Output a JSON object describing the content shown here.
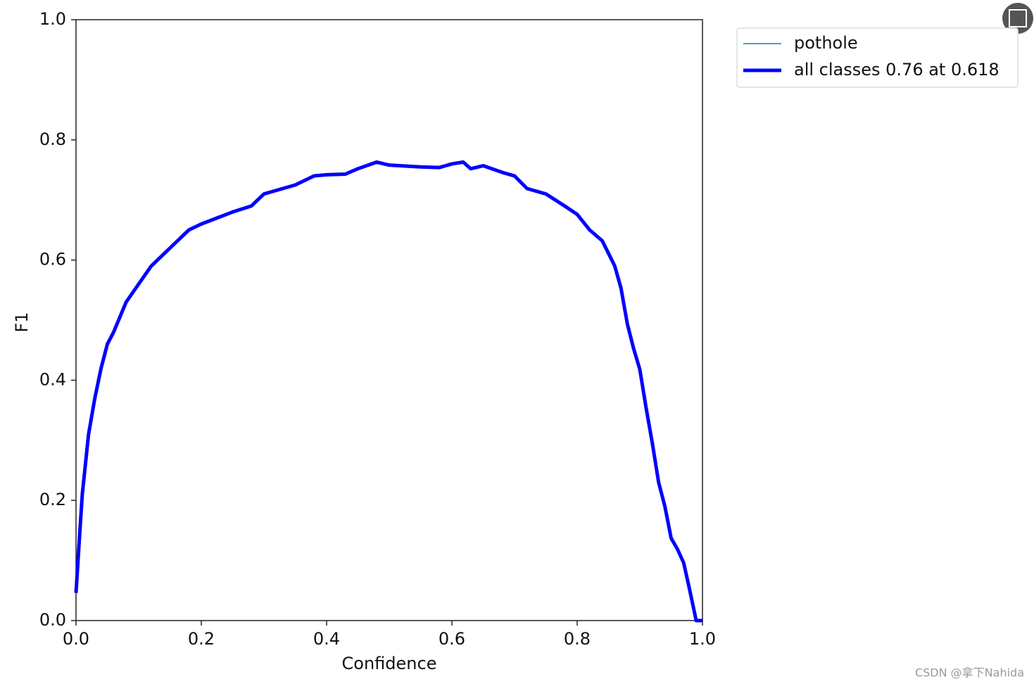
{
  "chart_data": {
    "type": "line",
    "xlabel": "Confidence",
    "ylabel": "F1",
    "x": [
      0.0,
      0.005,
      0.01,
      0.02,
      0.03,
      0.04,
      0.05,
      0.06,
      0.08,
      0.1,
      0.12,
      0.15,
      0.18,
      0.2,
      0.25,
      0.28,
      0.3,
      0.35,
      0.38,
      0.4,
      0.43,
      0.45,
      0.48,
      0.5,
      0.55,
      0.58,
      0.6,
      0.618,
      0.63,
      0.65,
      0.68,
      0.7,
      0.72,
      0.75,
      0.78,
      0.8,
      0.82,
      0.84,
      0.86,
      0.87,
      0.88,
      0.89,
      0.9,
      0.91,
      0.92,
      0.93,
      0.94,
      0.95,
      0.96,
      0.97,
      0.98,
      0.99,
      1.0
    ],
    "series": [
      {
        "name": "pothole",
        "color": "#1f77b4",
        "linewidth": 1.5,
        "values": [
          0.046,
          0.13,
          0.21,
          0.31,
          0.37,
          0.42,
          0.46,
          0.48,
          0.53,
          0.56,
          0.59,
          0.62,
          0.65,
          0.66,
          0.68,
          0.69,
          0.71,
          0.725,
          0.74,
          0.742,
          0.743,
          0.752,
          0.763,
          0.758,
          0.755,
          0.754,
          0.76,
          0.763,
          0.752,
          0.757,
          0.746,
          0.74,
          0.719,
          0.71,
          0.69,
          0.676,
          0.65,
          0.632,
          0.59,
          0.553,
          0.494,
          0.453,
          0.418,
          0.354,
          0.295,
          0.23,
          0.19,
          0.137,
          0.119,
          0.096,
          0.049,
          0.0,
          0.0
        ]
      },
      {
        "name": "all classes 0.76 at 0.618",
        "color": "#0000ff",
        "linewidth": 5,
        "values": [
          0.046,
          0.13,
          0.21,
          0.31,
          0.37,
          0.42,
          0.46,
          0.48,
          0.53,
          0.56,
          0.59,
          0.62,
          0.65,
          0.66,
          0.68,
          0.69,
          0.71,
          0.725,
          0.74,
          0.742,
          0.743,
          0.752,
          0.763,
          0.758,
          0.755,
          0.754,
          0.76,
          0.763,
          0.752,
          0.757,
          0.746,
          0.74,
          0.719,
          0.71,
          0.69,
          0.676,
          0.65,
          0.632,
          0.59,
          0.553,
          0.494,
          0.453,
          0.418,
          0.354,
          0.295,
          0.23,
          0.19,
          0.137,
          0.119,
          0.096,
          0.049,
          0.0,
          0.0
        ]
      }
    ],
    "xlim": [
      0,
      1
    ],
    "ylim": [
      0,
      1
    ],
    "xticks": [
      {
        "value": 0,
        "label": "0.0"
      },
      0.2,
      0.4,
      0.6,
      0.8,
      {
        "value": 1,
        "label": "1.0"
      }
    ],
    "yticks": [
      {
        "value": 0,
        "label": "0.0"
      },
      0.2,
      0.4,
      0.6,
      0.8,
      {
        "value": 1,
        "label": "1.0"
      }
    ],
    "legend": "outside-upper-right"
  },
  "watermark": "CSDN @拿下Nahida"
}
